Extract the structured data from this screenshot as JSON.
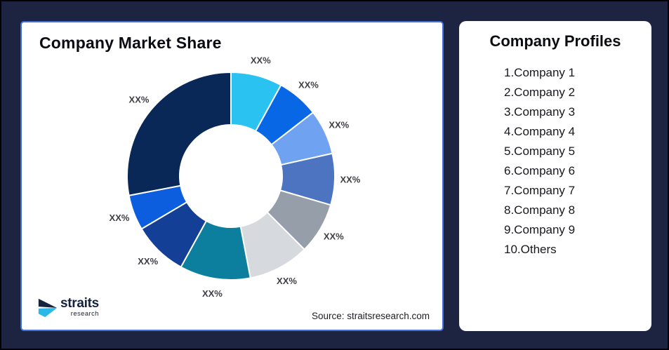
{
  "page": {
    "background_color": "#1C2441",
    "outer_border_color": "#000000"
  },
  "chart_card": {
    "title": "Company Market Share",
    "source_text": "Source: straitsresearch.com",
    "border_color": "#4170D8",
    "logo": {
      "brand": "straits",
      "brand_sub": "research",
      "mark_navy": "#16253F",
      "mark_cyan": "#29B9E9"
    }
  },
  "profiles_card": {
    "title": "Company Profiles",
    "items": [
      "1.Company 1",
      "2.Company 2",
      "3.Company 3",
      "4.Company 4",
      "5.Company 5",
      "6.Company 6",
      "7.Company 7",
      "8.Company 8",
      "9.Company 9",
      "10.Others"
    ]
  },
  "chart_data": {
    "type": "pie",
    "subtype": "donut",
    "title": "Company Market Share",
    "start_angle_deg": 0,
    "direction": "clockwise",
    "gap_color": "#FFFFFF",
    "label_color": "#3F4045",
    "slices": [
      {
        "name": "Company 1",
        "label": "XX%",
        "value_pct_est": 8,
        "color": "#29C2F1"
      },
      {
        "name": "Company 2",
        "label": "XX%",
        "value_pct_est": 6.5,
        "color": "#0767E5"
      },
      {
        "name": "Company 3",
        "label": "XX%",
        "value_pct_est": 7,
        "color": "#6FA2F0"
      },
      {
        "name": "Company 4",
        "label": "XX%",
        "value_pct_est": 8,
        "color": "#4C74C0"
      },
      {
        "name": "Company 5",
        "label": "XX%",
        "value_pct_est": 8,
        "color": "#969EAA"
      },
      {
        "name": "Company 6",
        "label": "XX%",
        "value_pct_est": 9.5,
        "color": "#D6D9DE"
      },
      {
        "name": "Company 7",
        "label": "XX%",
        "value_pct_est": 11,
        "color": "#0C7F9E"
      },
      {
        "name": "Company 8",
        "label": "XX%",
        "value_pct_est": 8.5,
        "color": "#133F96"
      },
      {
        "name": "Company 9",
        "label": "XX%",
        "value_pct_est": 5.5,
        "color": "#0C5EDE"
      },
      {
        "name": "Others",
        "label": "XX%",
        "value_pct_est": 28,
        "color": "#0A2857"
      }
    ]
  }
}
